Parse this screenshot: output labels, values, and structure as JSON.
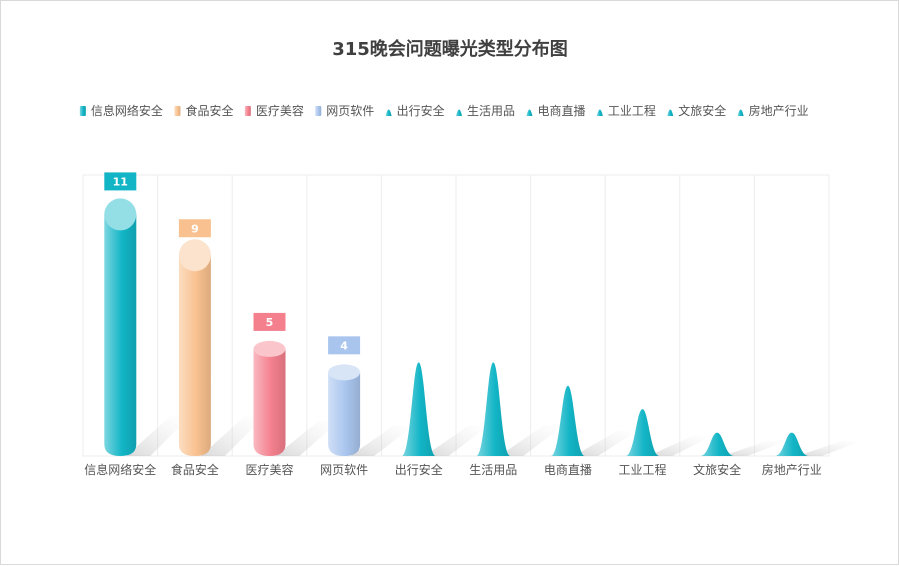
{
  "chart_data": {
    "type": "bar",
    "title": "315晚会问题曝光类型分布图",
    "categories": [
      "信息网络安全",
      "食品安全",
      "医疗美容",
      "网页软件",
      "出行安全",
      "生活用品",
      "电商直播",
      "工业工程",
      "文旅安全",
      "房地产行业"
    ],
    "values": [
      11,
      9,
      5,
      4,
      4,
      4,
      3,
      2,
      1,
      1
    ],
    "ylim": [
      0,
      12
    ],
    "grid": true,
    "legend_position": "top-center",
    "legend": [
      "信息网络安全",
      "食品安全",
      "医疗美容",
      "网页软件",
      "出行安全",
      "生活用品",
      "电商直播",
      "工业工程",
      "文旅安全",
      "房地产行业"
    ],
    "colors": {
      "信息网络安全": "#12b5c6",
      "食品安全": "#f9c18f",
      "医疗美容": "#f4808e",
      "网页软件": "#a9c5ee",
      "others": "#12b5c6"
    }
  }
}
